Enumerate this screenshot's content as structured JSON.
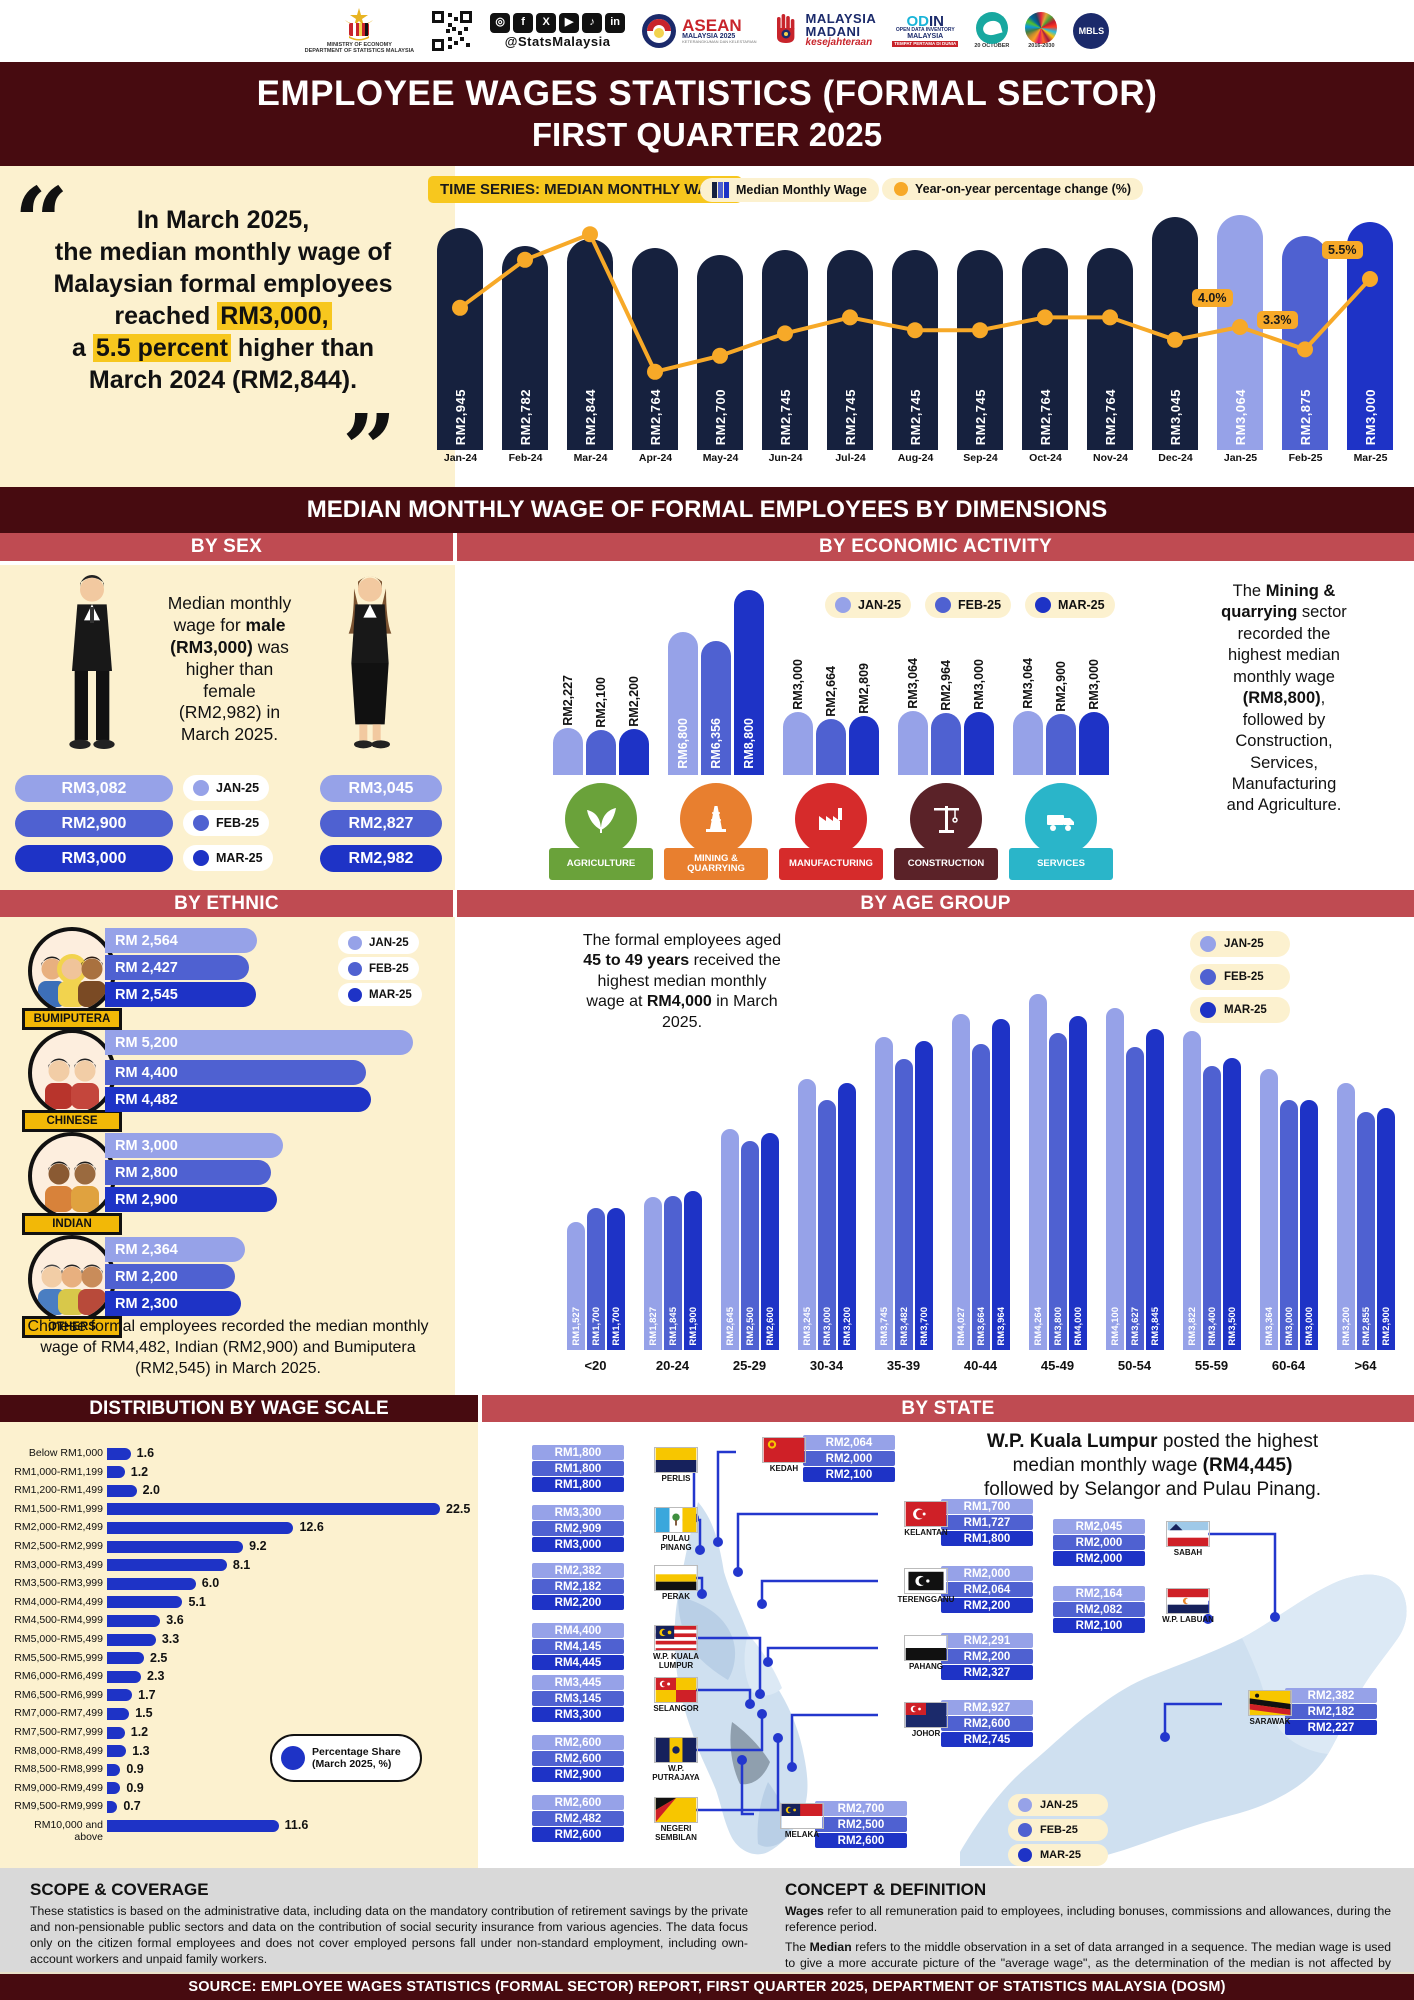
{
  "header": {
    "crest_caption": "MINISTRY OF ECONOMY\nDEPARTMENT OF STATISTICS MALAYSIA",
    "social_icons": [
      "instagram",
      "facebook",
      "x",
      "youtube",
      "tiktok",
      "linkedin"
    ],
    "social_glyphs": [
      "◎",
      "f",
      "X",
      "▶",
      "♪",
      "in"
    ],
    "social_handle": "@StatsMalaysia",
    "asean_line1": "ASEAN",
    "asean_line2": "MALAYSIA 2025",
    "asean_line3": "KETERANGKUMAN DAN KELESTARIAN",
    "madani_line1": "MALAYSIA",
    "madani_line2": "MADANI",
    "madani_script": "kesejahteraan",
    "odin_left": "OD",
    "odin_right": "IN",
    "odin_sub1": "OPEN DATA INVENTORY",
    "odin_sub2": "MALAYSIA",
    "odin_red": "TEMPAT PERTAMA DI DUNIA",
    "wsd_caption": "20 OCTOBER",
    "sdg_caption": "2016-2030",
    "mbls_label": "MBLS"
  },
  "title": {
    "line1": "EMPLOYEE WAGES STATISTICS (FORMAL SECTOR)",
    "line2": "FIRST QUARTER 2025"
  },
  "quote": {
    "segments": [
      {
        "t": "In March 2025,\nthe median monthly wage of\nMalaysian formal employees\nreached "
      },
      {
        "t": "RM3,000,",
        "hl": true
      },
      {
        "t": "\na "
      },
      {
        "t": "5.5 percent",
        "hl": true
      },
      {
        "t": " higher than\nMarch 2024 (RM2,844)."
      }
    ]
  },
  "time_series": {
    "badge": "TIME SERIES: MEDIAN MONTHLY WAGE",
    "legend_bar": "Median Monthly Wage",
    "legend_line": "Year-on-year percentage change (%)"
  },
  "dimensions_title": "MEDIAN MONTHLY WAGE OF FORMAL EMPLOYEES BY DIMENSIONS",
  "months_legend": [
    "JAN-25",
    "FEB-25",
    "MAR-25"
  ],
  "by_sex": {
    "heading": "BY SEX",
    "text_segments": [
      {
        "t": "Median monthly\nwage for "
      },
      {
        "t": "male",
        "b": true
      },
      {
        "t": "\n"
      },
      {
        "t": "(RM3,000)",
        "b": true
      },
      {
        "t": " was\nhigher than\nfemale\n(RM2,982) in\nMarch 2025."
      }
    ]
  },
  "by_economic": {
    "heading": "BY ECONOMIC ACTIVITY",
    "note_segments": [
      {
        "t": "The "
      },
      {
        "t": "Mining &\nquarrying",
        "b": true
      },
      {
        "t": " sector\nrecorded the\nhighest median\nmonthly wage\n"
      },
      {
        "t": "(RM8,800)",
        "b": true
      },
      {
        "t": ",\nfollowed by\nConstruction,\nServices,\nManufacturing\nand Agriculture."
      }
    ]
  },
  "by_ethnic": {
    "heading": "BY ETHNIC",
    "note": "Chinese formal employees recorded the median monthly wage of RM4,482, Indian (RM2,900) and Bumiputera (RM2,545) in March 2025."
  },
  "by_age": {
    "heading": "BY AGE GROUP",
    "note_segments": [
      {
        "t": "The formal employees aged\n"
      },
      {
        "t": "45 to 49 years",
        "b": true
      },
      {
        "t": " received the\nhighest median monthly\nwage at "
      },
      {
        "t": "RM4,000",
        "b": true
      },
      {
        "t": " in March\n2025."
      }
    ]
  },
  "wage_scale": {
    "heading": "DISTRIBUTION BY WAGE SCALE",
    "badge_line1": "Percentage Share",
    "badge_line2": "(March 2025, %)"
  },
  "by_state": {
    "heading": "BY STATE",
    "note_segments": [
      {
        "t": "W.P. Kuala Lumpur",
        "b": true
      },
      {
        "t": " posted the highest\nmedian monthly wage "
      },
      {
        "t": "(RM4,445)",
        "b": true
      },
      {
        "t": "\nfollowed by Selangor and Pulau Pinang."
      }
    ]
  },
  "footer": {
    "scope_title": "SCOPE & COVERAGE",
    "scope_body": "These statistics is based on the administrative data, including data on the mandatory contribution of retirement savings by the private and non-pensionable public sectors and data on the contribution of social security insurance from various agencies. The data focus only on the citizen formal employees and does not cover employed persons fall under non-standard employment, including own-account workers and unpaid family workers.",
    "concept_title": "CONCEPT & DEFINITION",
    "concept_p1_segments": [
      {
        "t": "Wages",
        "b": true
      },
      {
        "t": " refer to all remuneration paid to employees, including bonuses, commissions and allowances, during the reference period."
      }
    ],
    "concept_p2_segments": [
      {
        "t": "The "
      },
      {
        "t": "Median",
        "b": true
      },
      {
        "t": " refers to the middle observation in a set of data arranged in a sequence. The median wage is used to give a more accurate picture of the \"average wage\", as the determination of the median is not affected by extreme values."
      }
    ]
  },
  "source_bar": "SOURCE: EMPLOYEE WAGES STATISTICS (FORMAL SECTOR) REPORT, FIRST QUARTER 2025, DEPARTMENT OF STATISTICS MALAYSIA (DOSM)",
  "colors": {
    "maroon": "#470b10",
    "red_bar": "#bf4b52",
    "cream": "#fcf1cf",
    "navy_bar": "#16213e",
    "jan": "#96a2e8",
    "feb": "#4f61d1",
    "mar": "#1e33c6",
    "line_orange": "#f7a928",
    "highlight_yellow": "#f7c71e",
    "agriculture": "#6aa23a",
    "mining": "#e87f2f",
    "manufacturing": "#d62b2b",
    "construction": "#5a2228",
    "services": "#2ab5c9"
  },
  "chart_data": [
    {
      "id": "time_series",
      "type": "bar+line",
      "title": "TIME SERIES: MEDIAN MONTHLY WAGE",
      "categories": [
        "Jan-24",
        "Feb-24",
        "Mar-24",
        "Apr-24",
        "May-24",
        "Jun-24",
        "Jul-24",
        "Aug-24",
        "Sep-24",
        "Oct-24",
        "Nov-24",
        "Dec-24",
        "Jan-25",
        "Feb-25",
        "Mar-25"
      ],
      "series": [
        {
          "name": "Median Monthly Wage",
          "values": [
            2945,
            2782,
            2844,
            2764,
            2700,
            2745,
            2745,
            2745,
            2745,
            2764,
            2764,
            3045,
            3064,
            2875,
            3000
          ]
        },
        {
          "name": "Year-on-year percentage change (%)",
          "values": [
            4.6,
            6.1,
            6.9,
            2.6,
            3.1,
            3.8,
            4.3,
            3.9,
            3.9,
            4.3,
            4.3,
            3.6,
            4.0,
            3.3,
            5.5
          ],
          "point_labels": [
            null,
            null,
            null,
            null,
            null,
            null,
            null,
            null,
            null,
            null,
            null,
            null,
            "4.0%",
            "3.3%",
            "5.5%"
          ]
        }
      ],
      "legend_position": "top"
    },
    {
      "id": "by_sex",
      "type": "table",
      "categories": [
        "JAN-25",
        "FEB-25",
        "MAR-25"
      ],
      "series": [
        {
          "name": "Male",
          "values": [
            3082,
            2900,
            3000
          ]
        },
        {
          "name": "Female",
          "values": [
            3045,
            2827,
            2982
          ]
        }
      ]
    },
    {
      "id": "by_economic_activity",
      "type": "bar",
      "categories": [
        "AGRICULTURE",
        "MINING &\nQUARRYING",
        "MANUFACTURING",
        "CONSTRUCTION",
        "SERVICES"
      ],
      "series": [
        {
          "name": "JAN-25",
          "values": [
            2227,
            6800,
            3000,
            3064,
            3064
          ]
        },
        {
          "name": "FEB-25",
          "values": [
            2100,
            6356,
            2664,
            2964,
            2900
          ]
        },
        {
          "name": "MAR-25",
          "values": [
            2200,
            8800,
            2809,
            3000,
            3000
          ]
        }
      ]
    },
    {
      "id": "by_ethnic",
      "type": "bar-horizontal",
      "categories": [
        "BUMIPUTERA",
        "CHINESE",
        "INDIAN",
        "OTHERS"
      ],
      "series": [
        {
          "name": "JAN-25",
          "values": [
            2564,
            5200,
            3000,
            2364
          ]
        },
        {
          "name": "FEB-25",
          "values": [
            2427,
            4400,
            2800,
            2200
          ]
        },
        {
          "name": "MAR-25",
          "values": [
            2545,
            4482,
            2900,
            2300
          ]
        }
      ]
    },
    {
      "id": "by_age_group",
      "type": "bar",
      "categories": [
        "<20",
        "20-24",
        "25-29",
        "30-34",
        "35-39",
        "40-44",
        "45-49",
        "50-54",
        "55-59",
        "60-64",
        ">64"
      ],
      "series": [
        {
          "name": "JAN-25",
          "values": [
            1527,
            1827,
            2645,
            3245,
            3745,
            4027,
            4264,
            4100,
            3822,
            3364,
            3200
          ]
        },
        {
          "name": "FEB-25",
          "values": [
            1700,
            1845,
            2500,
            3000,
            3482,
            3664,
            3800,
            3627,
            3400,
            3000,
            2855
          ]
        },
        {
          "name": "MAR-25",
          "values": [
            1700,
            1900,
            2600,
            3200,
            3700,
            3964,
            4000,
            3845,
            3500,
            3000,
            2900
          ]
        }
      ]
    },
    {
      "id": "wage_scale",
      "type": "bar-horizontal",
      "title": "DISTRIBUTION BY WAGE SCALE",
      "unit": "Percentage Share (March 2025, %)",
      "categories": [
        "Below RM1,000",
        "RM1,000-RM1,199",
        "RM1,200-RM1,499",
        "RM1,500-RM1,999",
        "RM2,000-RM2,499",
        "RM2,500-RM2,999",
        "RM3,000-RM3,499",
        "RM3,500-RM3,999",
        "RM4,000-RM4,499",
        "RM4,500-RM4,999",
        "RM5,000-RM5,499",
        "RM5,500-RM5,999",
        "RM6,000-RM6,499",
        "RM6,500-RM6,999",
        "RM7,000-RM7,499",
        "RM7,500-RM7,999",
        "RM8,000-RM8,499",
        "RM8,500-RM8,999",
        "RM9,000-RM9,499",
        "RM9,500-RM9,999",
        "RM10,000 and above"
      ],
      "values": [
        1.6,
        1.2,
        2.0,
        22.5,
        12.6,
        9.2,
        8.1,
        6.0,
        5.1,
        3.6,
        3.3,
        2.5,
        2.3,
        1.7,
        1.5,
        1.2,
        1.3,
        0.9,
        0.9,
        0.7,
        11.6
      ]
    },
    {
      "id": "by_state",
      "type": "map-table",
      "categories": [
        "JAN-25",
        "FEB-25",
        "MAR-25"
      ],
      "rows": [
        {
          "state": "PERLIS",
          "display": "PERLIS",
          "values": [
            1800,
            1800,
            1800
          ]
        },
        {
          "state": "PULAU PINANG",
          "display": "PULAU\nPINANG",
          "values": [
            3300,
            2909,
            3000
          ]
        },
        {
          "state": "PERAK",
          "display": "PERAK",
          "values": [
            2382,
            2182,
            2200
          ]
        },
        {
          "state": "W.P. KUALA LUMPUR",
          "display": "W.P. KUALA\nLUMPUR",
          "values": [
            4400,
            4145,
            4445
          ]
        },
        {
          "state": "SELANGOR",
          "display": "SELANGOR",
          "values": [
            3445,
            3145,
            3300
          ]
        },
        {
          "state": "W.P. PUTRAJAYA",
          "display": "W.P.\nPUTRAJAYA",
          "values": [
            2600,
            2600,
            2900
          ]
        },
        {
          "state": "NEGERI SEMBILAN",
          "display": "NEGERI\nSEMBILAN",
          "values": [
            2600,
            2482,
            2600
          ]
        },
        {
          "state": "KEDAH",
          "display": "KEDAH",
          "values": [
            2064,
            2000,
            2100
          ]
        },
        {
          "state": "KELANTAN",
          "display": "KELANTAN",
          "values": [
            1700,
            1727,
            1800
          ]
        },
        {
          "state": "TERENGGANU",
          "display": "TERENGGANU",
          "values": [
            2000,
            2064,
            2200
          ]
        },
        {
          "state": "PAHANG",
          "display": "PAHANG",
          "values": [
            2291,
            2200,
            2327
          ]
        },
        {
          "state": "JOHOR",
          "display": "JOHOR",
          "values": [
            2927,
            2600,
            2745
          ]
        },
        {
          "state": "MELAKA",
          "display": "MELAKA",
          "values": [
            2700,
            2500,
            2600
          ]
        },
        {
          "state": "SABAH",
          "display": "SABAH",
          "values": [
            2045,
            2000,
            2000
          ]
        },
        {
          "state": "W.P. LABUAN",
          "display": "W.P. LABUAN",
          "values": [
            2164,
            2082,
            2100
          ]
        },
        {
          "state": "SARAWAK",
          "display": "SARAWAK",
          "values": [
            2382,
            2182,
            2227
          ]
        }
      ]
    }
  ]
}
